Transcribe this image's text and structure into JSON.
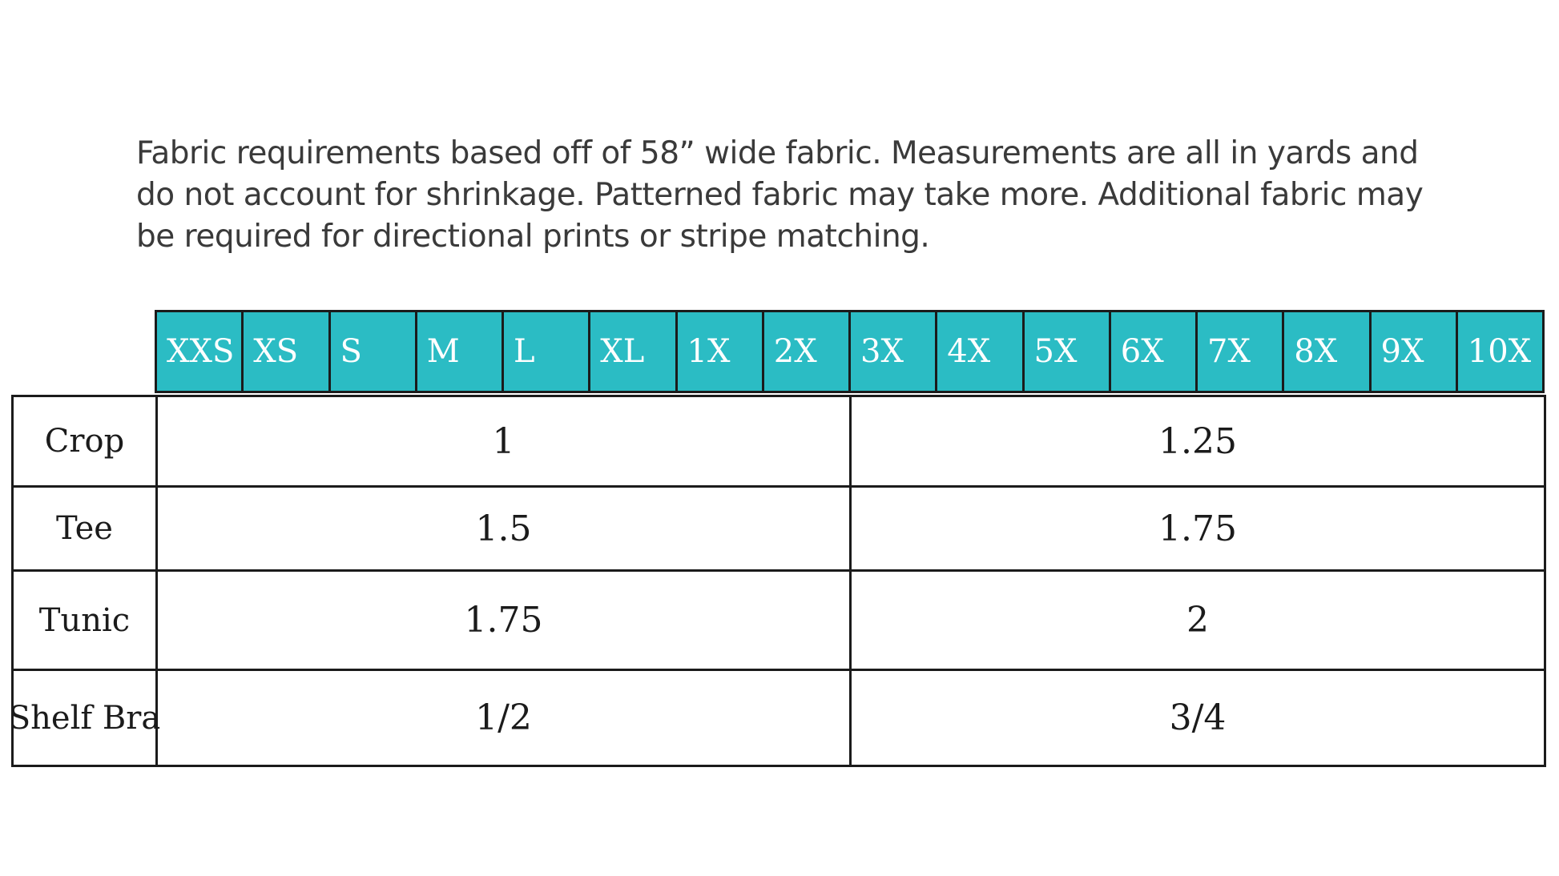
{
  "note": {
    "line1": "Fabric requirements based off of 58” wide fabric. Measurements are all in yards and",
    "line2": "do not account for shrinkage. Patterned fabric may take more. Additional fabric may",
    "line3": "be required for directional prints or stripe matching."
  },
  "sizes": [
    "XXS",
    "XS",
    "S",
    "M",
    "L",
    "XL",
    "1X",
    "2X",
    "3X",
    "4X",
    "5X",
    "6X",
    "7X",
    "8X",
    "9X",
    "10X"
  ],
  "rows": [
    {
      "label": "Crop",
      "small": "1",
      "large": "1.25"
    },
    {
      "label": "Tee",
      "small": "1.5",
      "large": "1.75"
    },
    {
      "label": "Tunic",
      "small": "1.75",
      "large": "2"
    },
    {
      "label": "Shelf Bra",
      "small": "1/2",
      "large": "3/4"
    }
  ],
  "colors": {
    "header_bg": "#2bbcc4",
    "header_text": "#ffffff",
    "border": "#1b1b1b"
  }
}
